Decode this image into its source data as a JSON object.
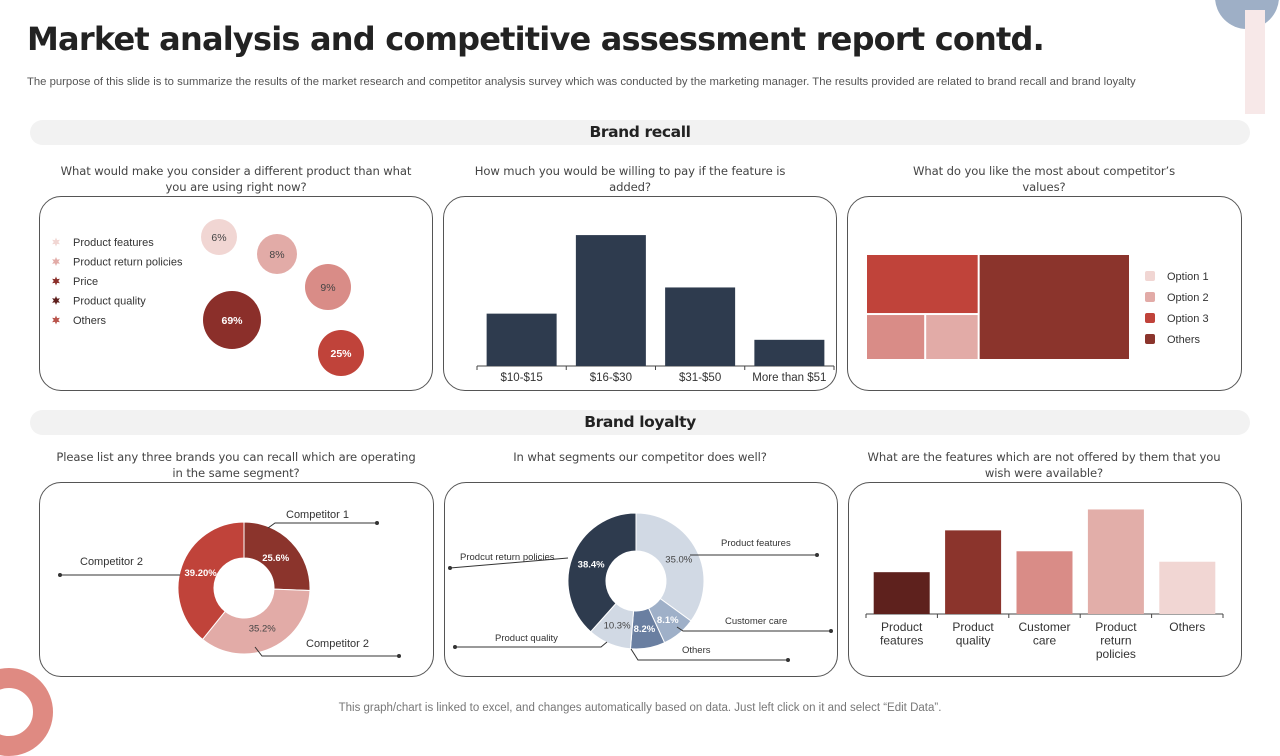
{
  "header": {
    "title": "Market analysis and competitive assessment report contd.",
    "subtitle": "The purpose of this slide is to summarize the results of the market research and competitor analysis survey which was conducted by the marketing manager. The results provided are related to brand recall and brand loyalty"
  },
  "sections": {
    "brand_recall": "Brand recall",
    "brand_loyalty": "Brand loyalty"
  },
  "questions": {
    "q1": "What would make you consider a different product than what you are using right now?",
    "q2": "How much you would be willing to pay if the feature is added?",
    "q3": "What do you like the most about competitor’s values?",
    "q4": "Please list any three brands you can recall which are operating in the same segment?",
    "q5": "In what segments our competitor does well?",
    "q6": "What are the features which are not offered by them that you wish were available?"
  },
  "footer": "This graph/chart is linked to excel, and changes automatically based on data. Just left click on it and select “Edit Data”.",
  "chart_data": [
    {
      "id": "consider-different-product",
      "type": "bubble",
      "title": "What would make you consider a different product than what you are using right now?",
      "legend_position": "left",
      "legend_icon": "star-icon",
      "series": [
        {
          "name": "Product features",
          "value": 6,
          "label": "6%",
          "color": "#f1d6d3",
          "label_color": "#444444"
        },
        {
          "name": "Product return policies",
          "value": 8,
          "label": "8%",
          "color": "#e2aba7",
          "label_color": "#444444"
        },
        {
          "name": "Price",
          "value": 9,
          "label": "9%",
          "color": "#d98c87",
          "label_color": "#444444"
        },
        {
          "name": "Product quality",
          "value": 69,
          "label": "69%",
          "color": "#8b2f2a",
          "label_color": "#ffffff"
        },
        {
          "name": "Others",
          "value": 25,
          "label": "25%",
          "color": "#c0433a",
          "label_color": "#ffffff"
        }
      ],
      "legend_colors": [
        "#f1d6d3",
        "#e2aba7",
        "#8b2f2a",
        "#5e1f1c",
        "#b9534a"
      ]
    },
    {
      "id": "willing-to-pay",
      "type": "bar",
      "title": "How much you would be willing to pay if the feature is added?",
      "categories": [
        "$10-$15",
        "$16-$30",
        "$31-$50",
        "More than $51"
      ],
      "values": [
        20,
        50,
        30,
        10
      ],
      "ylim": [
        0,
        55
      ],
      "color": "#2e3b4e",
      "grid": false
    },
    {
      "id": "competitor-values",
      "type": "treemap",
      "title": "What do you like the most about competitor’s values?",
      "legend_position": "right",
      "series": [
        {
          "name": "Option 1",
          "value": 9,
          "color": "#f1d6d3"
        },
        {
          "name": "Option 2",
          "value": 10,
          "color": "#e2aba7"
        },
        {
          "name": "Option 3",
          "value": 24,
          "color": "#c0433a"
        },
        {
          "name": "Others",
          "value": 57,
          "color": "#8b342c"
        }
      ]
    },
    {
      "id": "brands-recall",
      "type": "pie",
      "donut": true,
      "title": "Please list any three brands you can recall which are operating in the same segment?",
      "series": [
        {
          "name": "Competitor 1",
          "value": 25.6,
          "label": "25.6%",
          "color": "#8b342c",
          "label_color": "#ffffff"
        },
        {
          "name": "Competitor 2",
          "value": 35.2,
          "label": "35.2%",
          "color": "#e2aba7",
          "label_color": "#444444"
        },
        {
          "name": "Competitor 2",
          "value": 39.2,
          "label": "39.20%",
          "color": "#c0433a",
          "label_color": "#ffffff"
        }
      ]
    },
    {
      "id": "competitor-segments",
      "type": "pie",
      "donut": true,
      "title": "In what segments our competitor does well?",
      "series": [
        {
          "name": "Product features",
          "value": 35.0,
          "label": "35.0%",
          "color": "#d1d9e4",
          "label_color": "#444444"
        },
        {
          "name": "Customer care",
          "value": 8.1,
          "label": "8.1%",
          "color": "#9fb0c8",
          "label_color": "#ffffff"
        },
        {
          "name": "Others",
          "value": 8.2,
          "label": "8.2%",
          "color": "#6a7fa1",
          "label_color": "#ffffff"
        },
        {
          "name": "Product quality",
          "value": 10.3,
          "label": "10.3%",
          "color": "#d1d9e4",
          "label_color": "#444444"
        },
        {
          "name": "Prodcut return policies",
          "value": 38.4,
          "label": "38.4%",
          "color": "#2e3b4e",
          "label_color": "#ffffff"
        }
      ]
    },
    {
      "id": "features-wished",
      "type": "bar",
      "title": "What are the features which are not offered by them that you wish were available?",
      "categories": [
        "Product features",
        "Product quality",
        "Customer care",
        "Product return policies",
        "Others"
      ],
      "category_lines": [
        [
          "Product",
          "features"
        ],
        [
          "Product",
          "quality"
        ],
        [
          "Customer",
          "care"
        ],
        [
          "Product",
          "return",
          "policies"
        ],
        [
          "Others"
        ]
      ],
      "values": [
        2,
        4,
        3,
        5,
        2.5
      ],
      "ylim": [
        0,
        5.5
      ],
      "colors": [
        "#5e211d",
        "#8b342c",
        "#d98c87",
        "#e2aea9",
        "#f1d6d3"
      ],
      "grid": false
    }
  ]
}
